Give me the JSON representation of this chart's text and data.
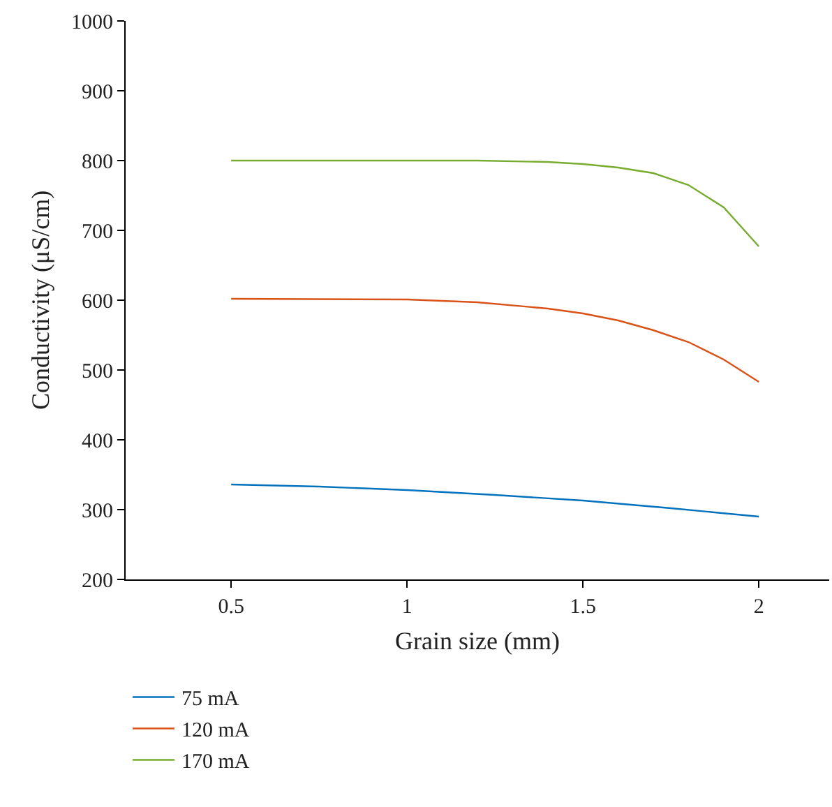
{
  "chart_data": {
    "type": "line",
    "xlabel": "Grain size (mm)",
    "ylabel": "Conductivity (μS/cm)",
    "xlim": [
      0.2,
      2.2
    ],
    "xticks": [
      0.5,
      1,
      1.5,
      2
    ],
    "ylim": [
      200,
      1000
    ],
    "yticks": [
      200,
      300,
      400,
      500,
      600,
      700,
      800,
      900,
      1000
    ],
    "grid": false,
    "legend": "bottom",
    "marker": "none",
    "line_style": "solid",
    "series": [
      {
        "name": "75 mA",
        "color": "#0072bd",
        "x": [
          0.5,
          0.75,
          1.0,
          1.25,
          1.5,
          1.75,
          2.0
        ],
        "values": [
          336,
          333,
          328,
          321,
          313,
          302,
          290
        ]
      },
      {
        "name": "120 mA",
        "color": "#d95319",
        "x": [
          0.5,
          1.0,
          1.2,
          1.4,
          1.5,
          1.6,
          1.7,
          1.8,
          1.9,
          2.0
        ],
        "values": [
          602,
          601,
          597,
          588,
          581,
          571,
          557,
          540,
          515,
          483
        ]
      },
      {
        "name": "170 mA",
        "color": "#77ac30",
        "x": [
          0.5,
          1.0,
          1.2,
          1.4,
          1.5,
          1.6,
          1.7,
          1.8,
          1.9,
          2.0
        ],
        "values": [
          800,
          800,
          800,
          798,
          795,
          790,
          782,
          765,
          733,
          677
        ]
      }
    ]
  }
}
